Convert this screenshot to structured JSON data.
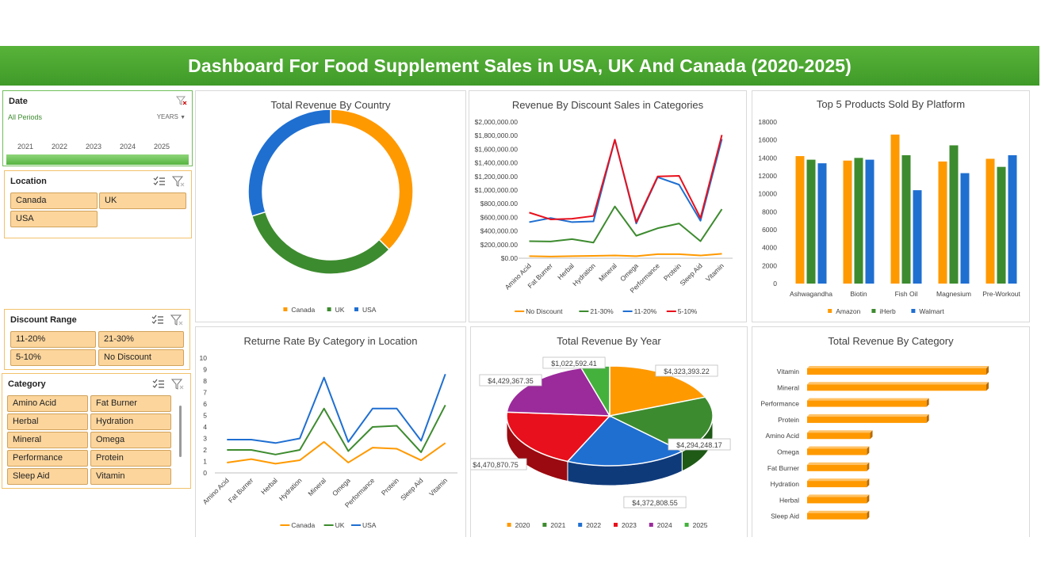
{
  "header": {
    "title": "Dashboard For Food Supplement Sales in USA, UK And Canada (2020-2025)"
  },
  "colors": {
    "banner": "#4aa830",
    "orange": "#ff9900",
    "green": "#3d8b2f",
    "blue": "#1f6fd1",
    "red": "#e8101c",
    "purple": "#9b2a9b",
    "lightgreen": "#44b13c",
    "tile": "#fcd59c"
  },
  "slicers": {
    "date": {
      "title": "Date",
      "period_label": "All Periods",
      "level_label": "YEARS",
      "years": [
        "2021",
        "2022",
        "2023",
        "2024",
        "2025"
      ],
      "clear_icon": "clear-filter-icon"
    },
    "location": {
      "title": "Location",
      "items": [
        "Canada",
        "UK",
        "USA"
      ]
    },
    "discount": {
      "title": "Discount Range",
      "items": [
        "11-20%",
        "21-30%",
        "5-10%",
        "No Discount"
      ]
    },
    "category": {
      "title": "Category",
      "items": [
        "Amino Acid",
        "Fat Burner",
        "Herbal",
        "Hydration",
        "Mineral",
        "Omega",
        "Performance",
        "Protein",
        "Sleep Aid",
        "Vitamin"
      ]
    },
    "icons": [
      "multi-select-icon",
      "clear-filter-icon"
    ]
  },
  "chart_data": [
    {
      "id": "revenue-by-country",
      "type": "pie",
      "title": "Total Revenue By Country",
      "categories": [
        "Canada",
        "UK",
        "USA"
      ],
      "values": [
        0.374,
        0.328,
        0.298
      ],
      "colors": [
        "#ff9900",
        "#3d8b2f",
        "#1f6fd1"
      ],
      "legend": "bottom"
    },
    {
      "id": "revenue-by-discount",
      "type": "line",
      "title": "Revenue By Discount Sales in Categories",
      "categories": [
        "Amino Acid",
        "Fat Burner",
        "Herbal",
        "Hydration",
        "Mineral",
        "Omega",
        "Performance",
        "Protein",
        "Sleep Aid",
        "Vitamin"
      ],
      "y_ticks": [
        "$0.00",
        "$200,000.00",
        "$400,000.00",
        "$600,000.00",
        "$800,000.00",
        "$1,000,000.00",
        "$1,200,000.00",
        "$1,400,000.00",
        "$1,600,000.00",
        "$1,800,000.00",
        "$2,000,000.00"
      ],
      "ylim": [
        0,
        2000000
      ],
      "series": [
        {
          "name": "No Discount",
          "color": "#ff9900",
          "values": [
            30000,
            25000,
            30000,
            35000,
            40000,
            30000,
            60000,
            60000,
            40000,
            65000
          ]
        },
        {
          "name": "21-30%",
          "color": "#3d8b2f",
          "values": [
            250000,
            245000,
            280000,
            230000,
            760000,
            330000,
            440000,
            510000,
            250000,
            720000
          ]
        },
        {
          "name": "11-20%",
          "color": "#1f6fd1",
          "values": [
            530000,
            590000,
            530000,
            540000,
            1740000,
            510000,
            1190000,
            1080000,
            550000,
            1750000
          ]
        },
        {
          "name": "5-10%",
          "color": "#e8101c",
          "values": [
            670000,
            570000,
            580000,
            620000,
            1740000,
            530000,
            1200000,
            1210000,
            590000,
            1810000
          ]
        }
      ],
      "legend": "bottom"
    },
    {
      "id": "top5-by-platform",
      "type": "bar",
      "title": "Top 5 Products Sold By Platform",
      "categories": [
        "Ashwagandha",
        "Biotin",
        "Fish Oil",
        "Magnesium",
        "Pre-Workout"
      ],
      "y_ticks": [
        "0",
        "2000",
        "4000",
        "6000",
        "8000",
        "10000",
        "12000",
        "14000",
        "16000",
        "18000"
      ],
      "ylim": [
        0,
        18000
      ],
      "series": [
        {
          "name": "Amazon",
          "color": "#ff9900",
          "values": [
            14200,
            13700,
            16600,
            13600,
            13900
          ]
        },
        {
          "name": "iHerb",
          "color": "#3d8b2f",
          "values": [
            13800,
            14000,
            14300,
            15400,
            13000
          ]
        },
        {
          "name": "Walmart",
          "color": "#1f6fd1",
          "values": [
            13400,
            13800,
            10400,
            12300,
            14300
          ]
        }
      ],
      "legend": "bottom"
    },
    {
      "id": "return-rate",
      "type": "line",
      "title": "Returne Rate By Category in Location",
      "categories": [
        "Amino Acid",
        "Fat Burner",
        "Herbal",
        "Hydration",
        "Mineral",
        "Omega",
        "Performance",
        "Protein",
        "Sleep Aid",
        "Vitamin"
      ],
      "y_ticks": [
        "0",
        "1",
        "2",
        "3",
        "4",
        "5",
        "6",
        "7",
        "8",
        "9",
        "10"
      ],
      "ylim": [
        0,
        10
      ],
      "series": [
        {
          "name": "Canada",
          "color": "#ff9900",
          "values": [
            0.9,
            1.2,
            0.8,
            1.1,
            2.7,
            0.9,
            2.2,
            2.1,
            1.1,
            2.6
          ]
        },
        {
          "name": "UK",
          "color": "#3d8b2f",
          "values": [
            2.0,
            2.0,
            1.6,
            2.0,
            5.6,
            1.9,
            4.0,
            4.1,
            1.8,
            5.9
          ]
        },
        {
          "name": "USA",
          "color": "#1f6fd1",
          "values": [
            2.9,
            2.9,
            2.6,
            3.0,
            8.3,
            2.7,
            5.6,
            5.6,
            2.8,
            8.6
          ]
        }
      ],
      "legend": "bottom"
    },
    {
      "id": "revenue-by-year",
      "type": "pie",
      "title": "Total Revenue By Year",
      "categories": [
        "2020",
        "2021",
        "2022",
        "2023",
        "2024",
        "2025"
      ],
      "values": [
        4323393.22,
        4294248.17,
        4372808.55,
        4470870.75,
        4429367.35,
        1022592.41
      ],
      "data_labels": [
        "$4,323,393.22",
        "$4,294,248.17",
        "$4,372,808.55",
        "$4,470,870.75",
        "$4,429,367.35",
        "$1,022,592.41"
      ],
      "colors": [
        "#ff9900",
        "#3d8b2f",
        "#1f6fd1",
        "#e8101c",
        "#9b2a9b",
        "#44b13c"
      ],
      "legend": "bottom"
    },
    {
      "id": "revenue-by-category",
      "type": "bar",
      "orientation": "horizontal",
      "title": "Total Revenue By Category",
      "categories": [
        "Vitamin",
        "Mineral",
        "Performance",
        "Protein",
        "Amino Acid",
        "Omega",
        "Fat Burner",
        "Hydration",
        "Herbal",
        "Sleep Aid"
      ],
      "values": [
        5.4,
        5.4,
        3.6,
        3.6,
        1.9,
        1.8,
        1.8,
        1.8,
        1.8,
        1.8
      ],
      "color": "#ff9900"
    }
  ]
}
